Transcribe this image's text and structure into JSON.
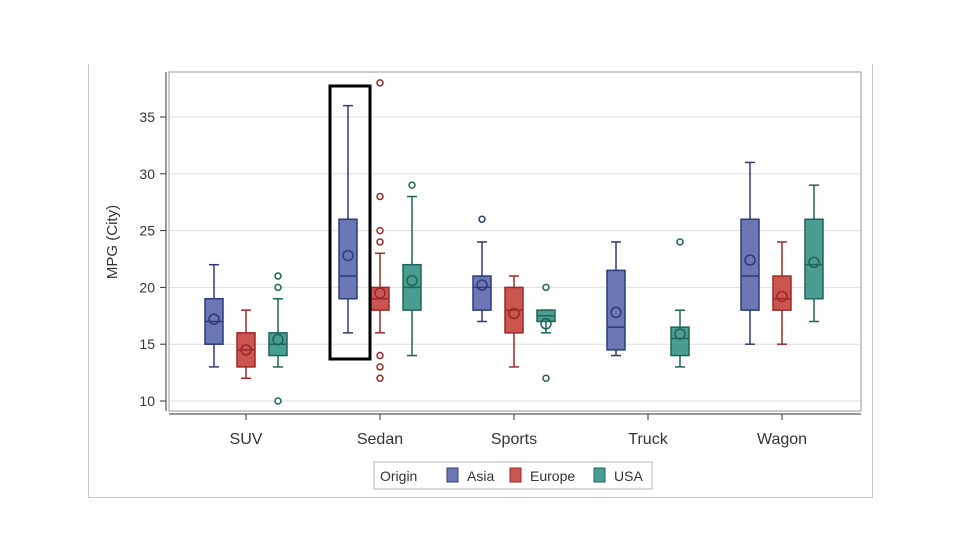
{
  "chart_data": {
    "type": "box",
    "ylabel": "MPG (City)",
    "xlabel": "",
    "ylim": [
      9,
      38.5
    ],
    "yticks": [
      10,
      15,
      20,
      25,
      30,
      35
    ],
    "categories": [
      "SUV",
      "Sedan",
      "Sports",
      "Truck",
      "Wagon"
    ],
    "legend": {
      "title": "Origin",
      "position": "bottom"
    },
    "colors": {
      "Asia": {
        "fill": "#6b78b4",
        "stroke": "#2c3b78"
      },
      "Europe": {
        "fill": "#cc5550",
        "stroke": "#9a2a28"
      },
      "USA": {
        "fill": "#4a9d91",
        "stroke": "#1e6458"
      }
    },
    "highlight": {
      "category": "Sedan",
      "series": "Asia"
    },
    "series": [
      {
        "name": "Asia",
        "boxes": [
          {
            "category": "SUV",
            "min": 13,
            "q1": 15,
            "median": 17,
            "q3": 19,
            "max": 22,
            "mean": 17.2,
            "outliers": []
          },
          {
            "category": "Sedan",
            "min": 16,
            "q1": 19,
            "median": 21,
            "q3": 26,
            "max": 36,
            "mean": 22.8,
            "outliers": []
          },
          {
            "category": "Sports",
            "min": 17,
            "q1": 18,
            "median": 20,
            "q3": 21,
            "max": 24,
            "mean": 20.2,
            "outliers": [
              26
            ]
          },
          {
            "category": "Truck",
            "min": 14,
            "q1": 14.5,
            "median": 16.5,
            "q3": 21.5,
            "max": 24,
            "mean": 17.8,
            "outliers": []
          },
          {
            "category": "Wagon",
            "min": 15,
            "q1": 18,
            "median": 21,
            "q3": 26,
            "max": 31,
            "mean": 22.4,
            "outliers": []
          }
        ]
      },
      {
        "name": "Europe",
        "boxes": [
          {
            "category": "SUV",
            "min": 12,
            "q1": 13,
            "median": 14.5,
            "q3": 16,
            "max": 18,
            "mean": 14.5,
            "outliers": []
          },
          {
            "category": "Sedan",
            "min": 16,
            "q1": 18,
            "median": 19,
            "q3": 20,
            "max": 23,
            "mean": 19.5,
            "outliers": [
              38,
              28,
              25,
              24,
              14,
              13,
              12
            ]
          },
          {
            "category": "Sports",
            "min": 13,
            "q1": 16,
            "median": 18,
            "q3": 20,
            "max": 21,
            "mean": 17.7,
            "outliers": []
          },
          {
            "category": "Wagon",
            "min": 15,
            "q1": 18,
            "median": 19,
            "q3": 21,
            "max": 24,
            "mean": 19.2,
            "outliers": []
          }
        ]
      },
      {
        "name": "USA",
        "boxes": [
          {
            "category": "SUV",
            "min": 13,
            "q1": 14,
            "median": 15,
            "q3": 16,
            "max": 19,
            "mean": 15.4,
            "outliers": [
              21,
              20,
              10
            ]
          },
          {
            "category": "Sedan",
            "min": 14,
            "q1": 18,
            "median": 20,
            "q3": 22,
            "max": 28,
            "mean": 20.6,
            "outliers": [
              29
            ]
          },
          {
            "category": "Sports",
            "min": 16,
            "q1": 17,
            "median": 17.5,
            "q3": 18,
            "max": 18,
            "mean": 16.8,
            "outliers": [
              20,
              12
            ]
          },
          {
            "category": "Truck",
            "min": 13,
            "q1": 14,
            "median": 15.5,
            "q3": 16.5,
            "max": 18,
            "mean": 15.9,
            "outliers": [
              24
            ]
          },
          {
            "category": "Wagon",
            "min": 17,
            "q1": 19,
            "median": 22,
            "q3": 26,
            "max": 29,
            "mean": 22.2,
            "outliers": []
          }
        ]
      }
    ]
  }
}
